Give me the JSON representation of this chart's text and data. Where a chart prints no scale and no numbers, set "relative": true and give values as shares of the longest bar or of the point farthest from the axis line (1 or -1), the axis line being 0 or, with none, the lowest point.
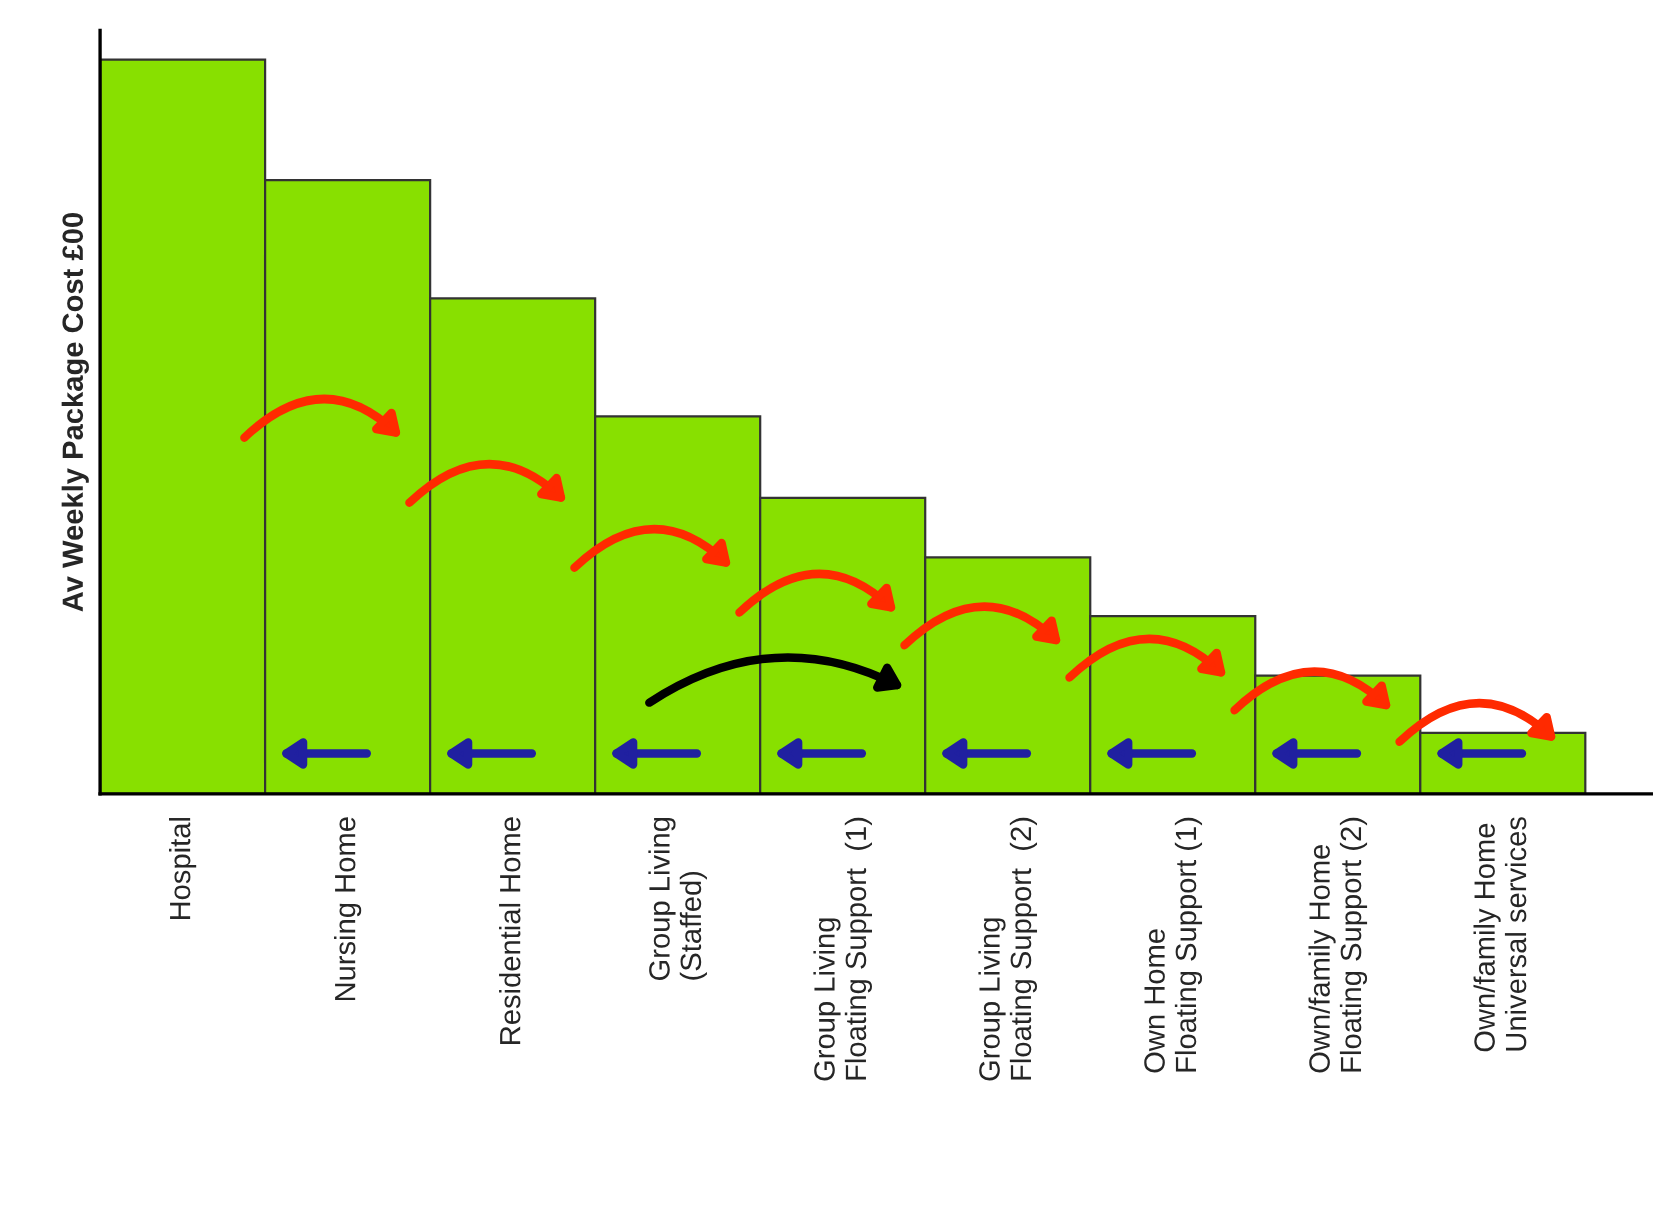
{
  "chart_data": {
    "type": "bar",
    "relative": true,
    "ylabel": "Av Weekly Package Cost £00",
    "categories": [
      "Hospital",
      "Nursing Home",
      "Residential Home",
      "Group Living\n(Staffed)",
      "Group Living\nFloating Support  (1)",
      "Group Living\nFloating Support  (2)",
      "Own Home\nFloating Support (1)",
      "Own/family Home\nFloating Support (2)",
      "Own/family Home\nUniversal services"
    ],
    "values": [
      1,
      0.836,
      0.675,
      0.514,
      0.403,
      0.322,
      0.242,
      0.161,
      0.083
    ],
    "color": "#88e000",
    "grid": false
  }
}
